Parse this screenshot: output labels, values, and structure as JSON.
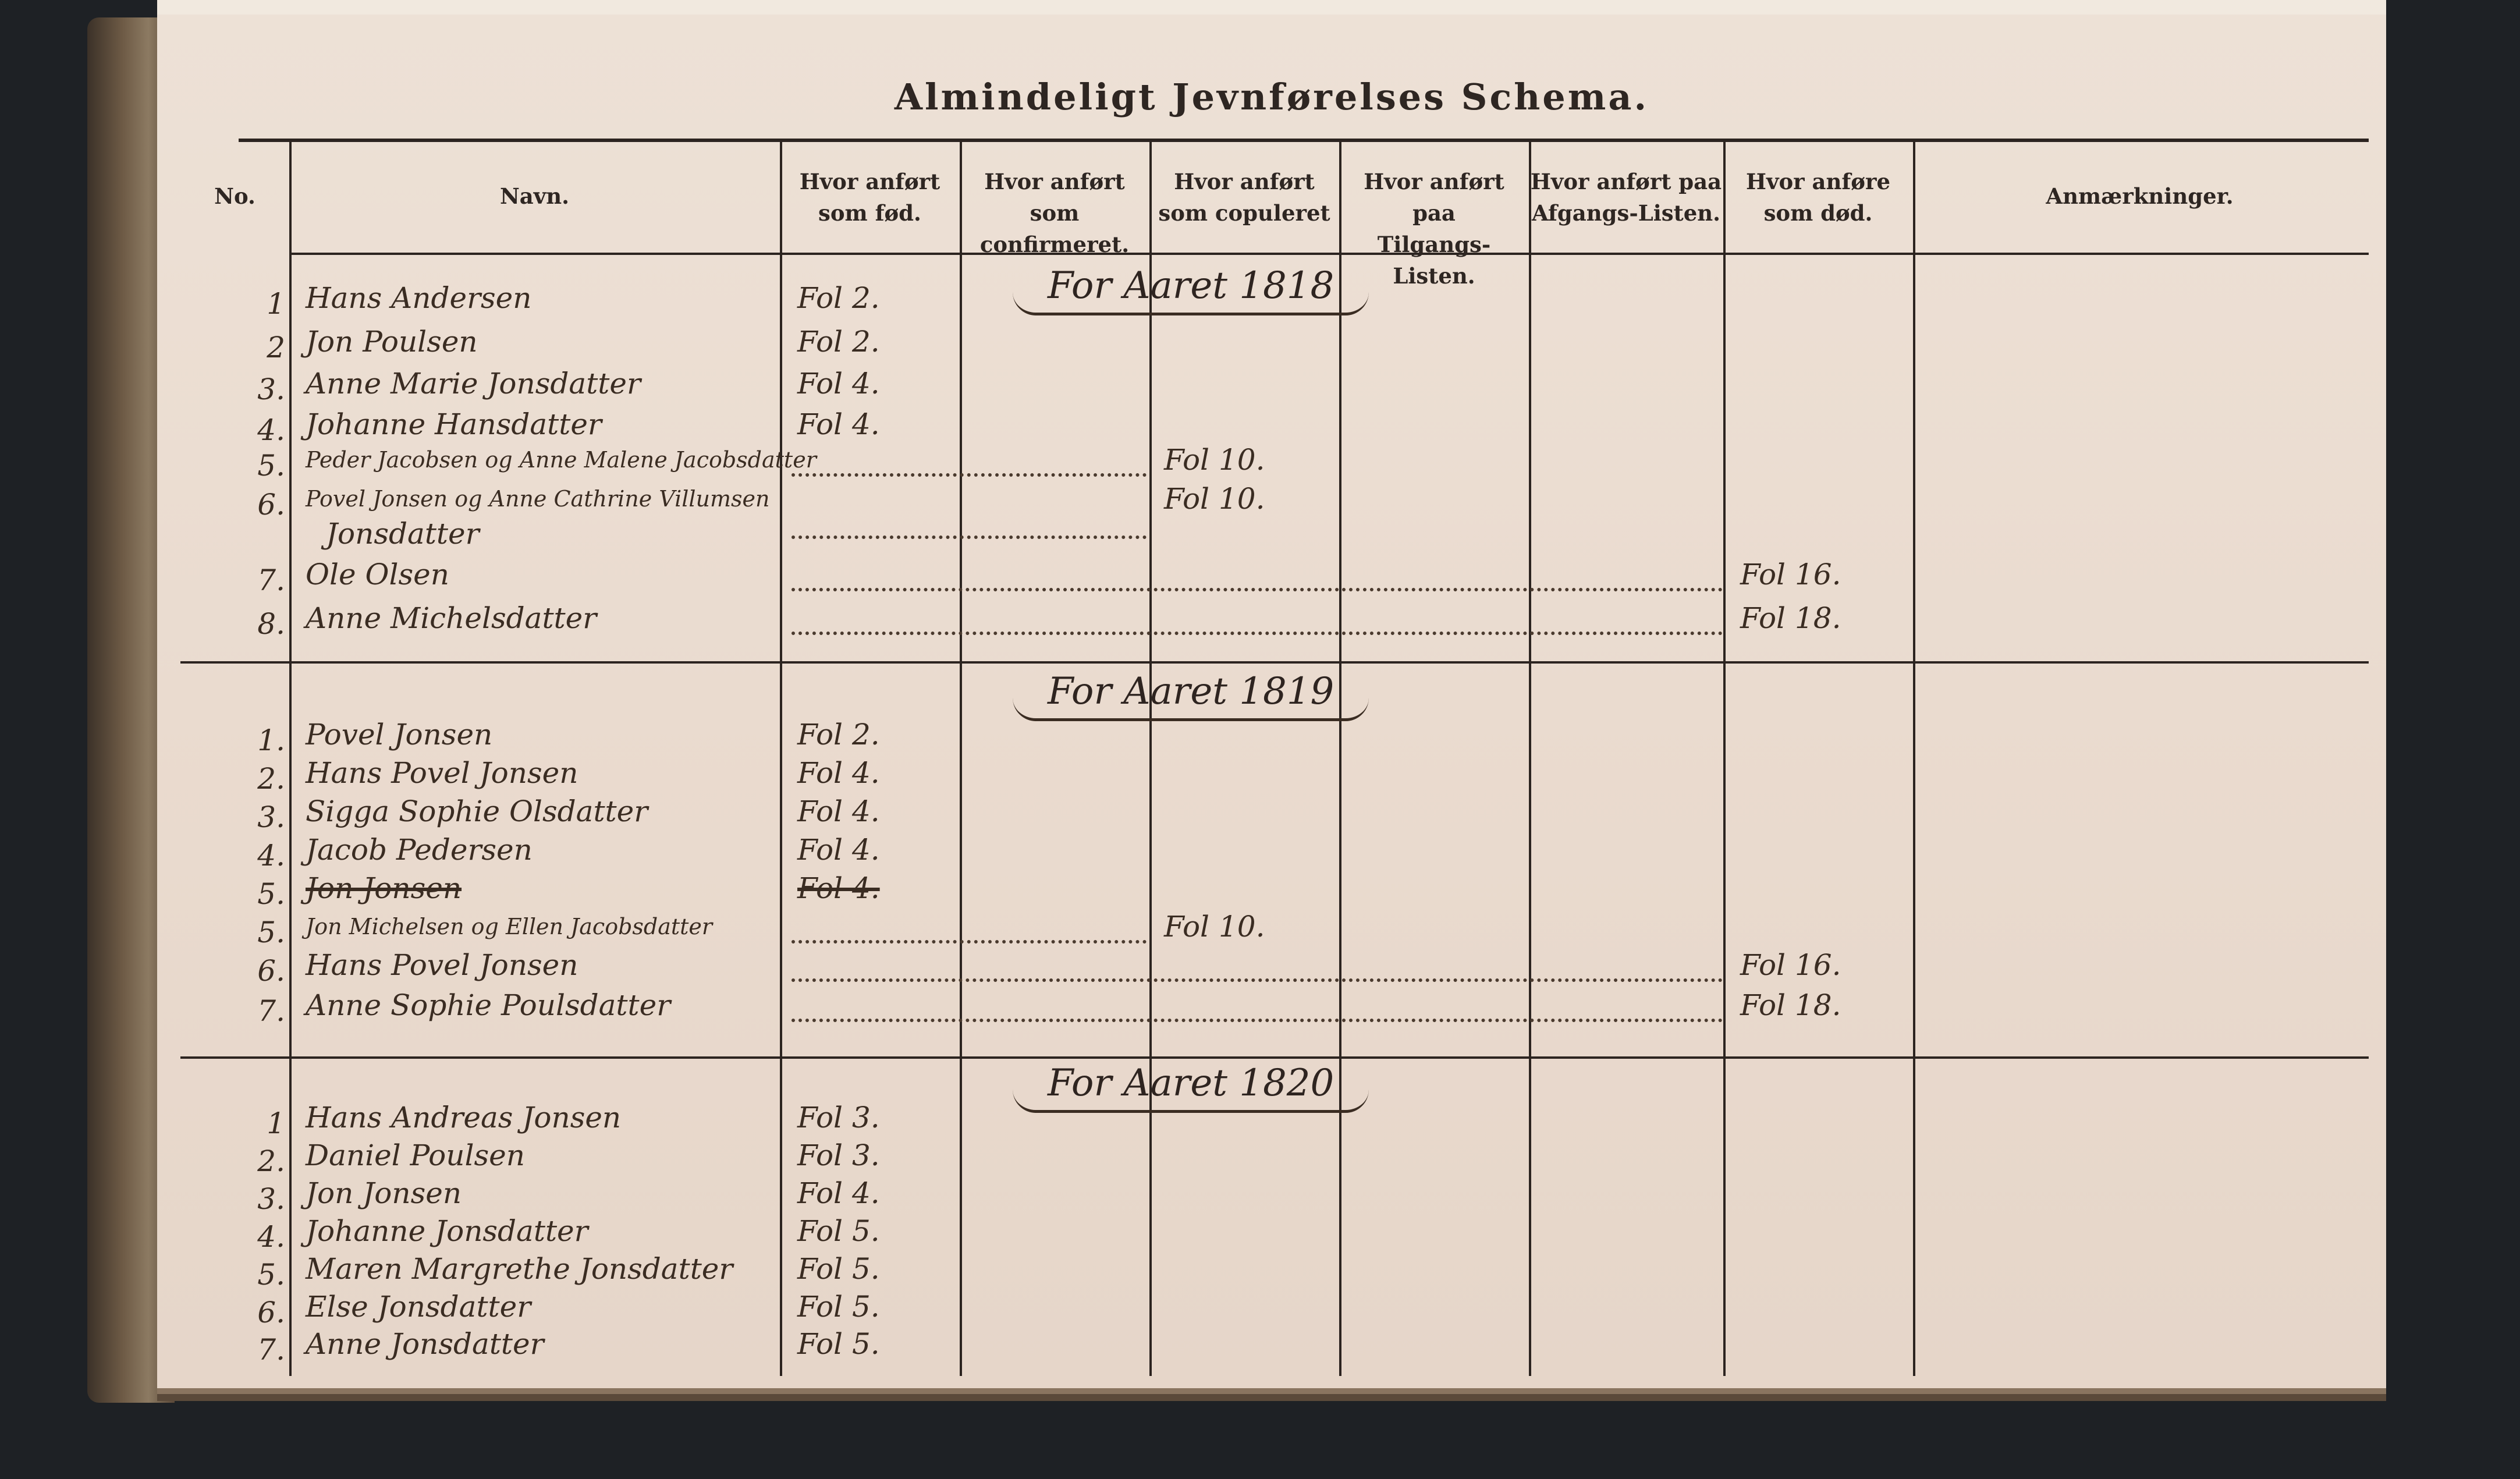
{
  "title": "Almindeligt Jevnførelses Schema.",
  "columns": {
    "no": "No.",
    "navn": "Navn.",
    "fod": [
      "Hvor anført",
      "som fød."
    ],
    "confirmeret": [
      "Hvor anført",
      "som confirmeret."
    ],
    "copuleret": [
      "Hvor anført",
      "som copuleret"
    ],
    "tilgang": [
      "Hvor anført paa",
      "Tilgangs-Listen."
    ],
    "afgang": [
      "Hvor anført paa",
      "Afgangs-Listen."
    ],
    "dod": [
      "Hvor anføre",
      "som død."
    ],
    "anm": "Anmærkninger."
  },
  "sections": [
    {
      "heading": "For Aaret 1818",
      "rows": [
        {
          "no": "1",
          "name": "Hans Andersen",
          "fod": "Fol 2."
        },
        {
          "no": "2",
          "name": "Jon Poulsen",
          "fod": "Fol 2."
        },
        {
          "no": "3.",
          "name": "Anne Marie Jonsdatter",
          "fod": "Fol 4."
        },
        {
          "no": "4.",
          "name": "Johanne Hansdatter",
          "fod": "Fol 4."
        },
        {
          "no": "5.",
          "name": "Peder Jacobsen og Anne Malene Jacobsdatter",
          "copuleret": "Fol 10."
        },
        {
          "no": "6.",
          "name": "Povel Jonsen og Anne Cathrine Villumsen",
          "name2": "Jonsdatter",
          "copuleret": "Fol 10."
        },
        {
          "no": "7.",
          "name": "Ole Olsen",
          "dod": "Fol 16."
        },
        {
          "no": "8.",
          "name": "Anne Michelsdatter",
          "dod": "Fol 18."
        }
      ]
    },
    {
      "heading": "For Aaret 1819",
      "rows": [
        {
          "no": "1.",
          "name": "Povel Jonsen",
          "fod": "Fol 2."
        },
        {
          "no": "2.",
          "name": "Hans Povel Jonsen",
          "fod": "Fol 4."
        },
        {
          "no": "3.",
          "name": "Sigga Sophie Olsdatter",
          "fod": "Fol 4."
        },
        {
          "no": "4.",
          "name": "Jacob Pedersen",
          "fod": "Fol 4."
        },
        {
          "no": "5.",
          "name": "Jon Jonsen",
          "fod": "Fol 4.",
          "struck": true
        },
        {
          "no": "5.",
          "name": "Jon Michelsen og Ellen Jacobsdatter",
          "copuleret": "Fol 10."
        },
        {
          "no": "6.",
          "name": "Hans Povel Jonsen",
          "dod": "Fol 16."
        },
        {
          "no": "7.",
          "name": "Anne Sophie Poulsdatter",
          "dod": "Fol 18."
        }
      ]
    },
    {
      "heading": "For Aaret 1820",
      "rows": [
        {
          "no": "1",
          "name": "Hans Andreas Jonsen",
          "fod": "Fol 3."
        },
        {
          "no": "2.",
          "name": "Daniel Poulsen",
          "fod": "Fol 3."
        },
        {
          "no": "3.",
          "name": "Jon Jonsen",
          "fod": "Fol 4."
        },
        {
          "no": "4.",
          "name": "Johanne Jonsdatter",
          "fod": "Fol 5."
        },
        {
          "no": "5.",
          "name": "Maren Margrethe Jonsdatter",
          "fod": "Fol 5."
        },
        {
          "no": "6.",
          "name": "Else Jonsdatter",
          "fod": "Fol 5."
        },
        {
          "no": "7.",
          "name": "Anne Jonsdatter",
          "fod": "Fol 5."
        }
      ]
    }
  ]
}
